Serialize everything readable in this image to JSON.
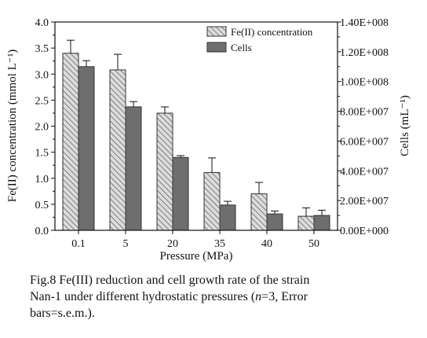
{
  "chart_data": {
    "type": "bar",
    "categories": [
      "0.1",
      "5",
      "20",
      "35",
      "40",
      "50"
    ],
    "xlabel": "Pressure (MPa)",
    "ylabel": "Fe(II) concentration (mmol L⁻¹)",
    "y2label": "Cells (mL⁻¹)",
    "ylim": [
      0,
      4.0
    ],
    "y2lim": [
      0,
      140000000.0
    ],
    "yticks": [
      "0.0",
      "0.5",
      "1.0",
      "1.5",
      "2.0",
      "2.5",
      "3.0",
      "3.5",
      "4.0"
    ],
    "y2ticks": [
      "0.00E+000",
      "2.00E+007",
      "4.00E+007",
      "6.00E+007",
      "8.00E+007",
      "1.00E+008",
      "1.20E+008",
      "1.40E+008"
    ],
    "legend_position": "top-right",
    "series": [
      {
        "name": "Fe(II) concentration",
        "axis": "left",
        "pattern": "hatched",
        "values": [
          3.4,
          3.08,
          2.25,
          1.11,
          0.7,
          0.27
        ],
        "errors": [
          0.25,
          0.3,
          0.12,
          0.28,
          0.22,
          0.16
        ]
      },
      {
        "name": "Cells",
        "axis": "right",
        "pattern": "solid",
        "values": [
          110000000.0,
          83000000.0,
          49000000.0,
          17000000.0,
          11000000.0,
          10000000.0
        ],
        "errors": [
          4000000.0,
          3500000.0,
          1200000.0,
          2500000.0,
          2000000.0,
          3500000.0
        ]
      }
    ],
    "colors": {
      "hatch_fill": "#d9d9d9",
      "hatch_line": "#555555",
      "solid_fill": "#6e6e6e",
      "axis": "#111111"
    }
  },
  "caption": {
    "line1": "Fig.8 Fe(III) reduction and cell growth rate of the strain",
    "line2_before_n": "Nan-1 under different hydrostatic pressures (",
    "n_symbol": "n",
    "line2_after_n": "=3, Error",
    "line3": "bars=s.e.m.)."
  }
}
